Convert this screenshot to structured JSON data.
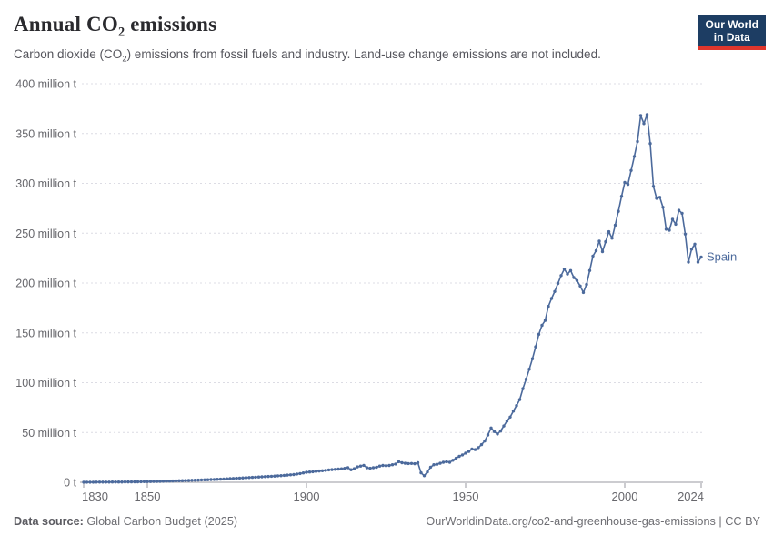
{
  "header": {
    "title": {
      "pre": "Annual CO",
      "sub": "2",
      "post": " emissions"
    },
    "subtitle": {
      "pre": "Carbon dioxide (CO",
      "sub": "2",
      "post": ") emissions from fossil fuels and industry. Land-use change emissions are not included."
    },
    "logo": {
      "line1": "Our World",
      "line2": "in Data",
      "bg_color": "#1d3d63",
      "accent_color": "#e0362c"
    }
  },
  "chart_data": {
    "type": "line",
    "title": "Annual CO2 emissions",
    "subtitle": "Carbon dioxide (CO2) emissions from fossil fuels and industry. Land-use change emissions are not included.",
    "unit": "million t",
    "grid": true,
    "legend_position": "end-of-line-label",
    "marker": "dot-per-year",
    "x_range": [
      1830,
      2024
    ],
    "ylim": [
      0,
      400
    ],
    "x": {
      "start": 1830,
      "end": 2024,
      "step": 1
    },
    "x_ticks": [
      {
        "value": 1830,
        "label": "1830"
      },
      {
        "value": 1850,
        "label": "1850"
      },
      {
        "value": 1900,
        "label": "1900"
      },
      {
        "value": 1950,
        "label": "1950"
      },
      {
        "value": 2000,
        "label": "2000"
      },
      {
        "value": 2024,
        "label": "2024"
      }
    ],
    "y_ticks": [
      {
        "value": 0,
        "label": "0 t"
      },
      {
        "value": 50,
        "label": "50 million t"
      },
      {
        "value": 100,
        "label": "100 million t"
      },
      {
        "value": 150,
        "label": "150 million t"
      },
      {
        "value": 200,
        "label": "200 million t"
      },
      {
        "value": 250,
        "label": "250 million t"
      },
      {
        "value": 300,
        "label": "300 million t"
      },
      {
        "value": 350,
        "label": "350 million t"
      },
      {
        "value": 400,
        "label": "400 million t"
      }
    ],
    "series": [
      {
        "name": "Spain",
        "color": "#4C6A9C",
        "values": [
          0.09,
          0.1,
          0.11,
          0.12,
          0.14,
          0.15,
          0.17,
          0.19,
          0.21,
          0.23,
          0.25,
          0.28,
          0.31,
          0.34,
          0.37,
          0.41,
          0.45,
          0.49,
          0.54,
          0.6,
          0.66,
          0.72,
          0.79,
          0.86,
          0.94,
          1.03,
          1.12,
          1.22,
          1.32,
          1.43,
          1.54,
          1.65,
          1.76,
          1.87,
          1.98,
          2.1,
          2.22,
          2.34,
          2.46,
          2.59,
          2.72,
          2.86,
          3.0,
          3.15,
          3.3,
          3.45,
          3.62,
          3.8,
          3.98,
          4.18,
          4.38,
          4.56,
          4.74,
          4.92,
          5.1,
          5.28,
          5.46,
          5.64,
          5.82,
          6.0,
          6.2,
          6.45,
          6.7,
          6.95,
          7.2,
          7.5,
          7.8,
          8.3,
          8.8,
          9.4,
          10.0,
          10.3,
          10.6,
          11.0,
          11.3,
          11.6,
          12.0,
          12.4,
          12.7,
          13.0,
          13.2,
          13.5,
          14.0,
          14.6,
          12.6,
          13.6,
          15.4,
          16.3,
          17.0,
          14.6,
          14.1,
          14.6,
          15.1,
          16.3,
          16.9,
          16.6,
          16.9,
          17.6,
          18.4,
          20.6,
          19.6,
          19.1,
          18.8,
          18.9,
          18.6,
          19.6,
          9.5,
          6.6,
          10.4,
          15.2,
          17.6,
          18.1,
          19.1,
          20.1,
          20.6,
          20.1,
          22.1,
          24.1,
          26.0,
          27.5,
          29.3,
          31.0,
          33.4,
          32.8,
          34.8,
          37.8,
          41.5,
          47.5,
          54.5,
          51.0,
          48.5,
          51.5,
          56.5,
          61.5,
          65.5,
          71.5,
          77.0,
          83.0,
          94.0,
          103.5,
          113.5,
          124.0,
          136.0,
          148.5,
          157.5,
          162.5,
          176.5,
          184.5,
          191.5,
          199.5,
          207.5,
          214.0,
          209.0,
          212.5,
          205.5,
          202.5,
          197.0,
          190.5,
          198.5,
          212.5,
          227.0,
          232.5,
          242.0,
          231.5,
          241.5,
          251.5,
          245.0,
          258.0,
          272.0,
          287.0,
          301.0,
          299.0,
          313.0,
          327.0,
          342.0,
          368.0,
          360.0,
          369.0,
          340.0,
          297.0,
          285.0,
          286.0,
          276.0,
          254.0,
          253.0,
          264.0,
          259.0,
          273.0,
          270.0,
          249.0,
          221.0,
          234.0,
          239.0,
          221.0,
          226.0
        ]
      }
    ],
    "colors": {
      "line": "#4C6A9C",
      "gridline": "#dcdce4",
      "axis_line": "#9a9aa2",
      "tick_text": "#67676c"
    }
  },
  "footer": {
    "source_label": "Data source:",
    "source_value": " Global Carbon Budget (2025)",
    "note": "OurWorldinData.org/co2-and-greenhouse-gas-emissions | CC BY"
  }
}
